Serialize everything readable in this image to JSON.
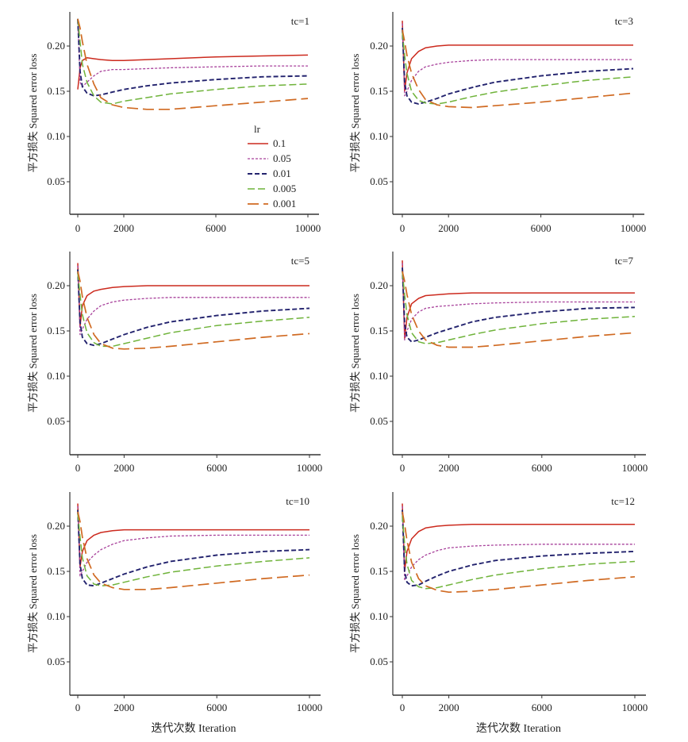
{
  "figure": {
    "xlabel": "迭代次数 Iteration",
    "ylabel": "平方损失 Squared error loss"
  },
  "legend": {
    "title": "lr",
    "entries": [
      "0.1",
      "0.05",
      "0.01",
      "0.005",
      "0.001"
    ]
  },
  "series_styles": [
    {
      "name": "0.1",
      "color": "#cc2a1e",
      "dash": "none",
      "width": 1.5
    },
    {
      "name": "0.05",
      "color": "#a8419b",
      "dash": "3,2",
      "width": 1.3
    },
    {
      "name": "0.01",
      "color": "#23236e",
      "dash": "6,3",
      "width": 1.9
    },
    {
      "name": "0.005",
      "color": "#6fb33a",
      "dash": "9,4",
      "width": 1.5
    },
    {
      "name": "0.001",
      "color": "#d06a22",
      "dash": "14,6",
      "width": 1.7
    }
  ],
  "chart_data": [
    {
      "type": "line",
      "title": "tc=1",
      "xlabel": "",
      "ylabel": "平方损失 Squared error loss",
      "xlim": [
        -500,
        10000
      ],
      "ylim": [
        0.02,
        0.23
      ],
      "xticks": [
        "0",
        "2000",
        "6000",
        "10000"
      ],
      "xtick_values": [
        0,
        2000,
        6000,
        10000
      ],
      "yticks": [
        "0.20",
        "0.15",
        "0.10",
        "0.05"
      ],
      "ytick_values": [
        0.2,
        0.15,
        0.1,
        0.05
      ],
      "show_legend": true,
      "legend_position": "center-right",
      "x": [
        0,
        100,
        200,
        400,
        700,
        1000,
        1500,
        2000,
        3000,
        4000,
        6000,
        8000,
        10000
      ],
      "series": [
        {
          "name": "0.1",
          "values": [
            0.152,
            0.176,
            0.184,
            0.187,
            0.186,
            0.185,
            0.184,
            0.184,
            0.185,
            0.186,
            0.188,
            0.189,
            0.19
          ]
        },
        {
          "name": "0.05",
          "values": [
            0.23,
            0.16,
            0.155,
            0.16,
            0.167,
            0.172,
            0.174,
            0.174,
            0.175,
            0.176,
            0.177,
            0.178,
            0.178
          ]
        },
        {
          "name": "0.01",
          "values": [
            0.23,
            0.172,
            0.155,
            0.148,
            0.145,
            0.146,
            0.149,
            0.152,
            0.156,
            0.159,
            0.163,
            0.166,
            0.167
          ]
        },
        {
          "name": "0.005",
          "values": [
            0.23,
            0.205,
            0.18,
            0.16,
            0.145,
            0.138,
            0.136,
            0.139,
            0.143,
            0.147,
            0.152,
            0.156,
            0.158
          ]
        },
        {
          "name": "0.001",
          "values": [
            0.23,
            0.22,
            0.205,
            0.18,
            0.158,
            0.143,
            0.135,
            0.132,
            0.13,
            0.13,
            0.134,
            0.138,
            0.142
          ]
        }
      ]
    },
    {
      "type": "line",
      "title": "tc=3",
      "xlabel": "",
      "ylabel": "平方损失 Squared error loss",
      "xlim": [
        -500,
        10000
      ],
      "ylim": [
        0.02,
        0.23
      ],
      "xticks": [
        "0",
        "2000",
        "6000",
        "10000"
      ],
      "xtick_values": [
        0,
        2000,
        6000,
        10000
      ],
      "yticks": [
        "0.20",
        "0.15",
        "0.10",
        "0.05"
      ],
      "ytick_values": [
        0.2,
        0.15,
        0.1,
        0.05
      ],
      "show_legend": false,
      "x": [
        0,
        100,
        200,
        400,
        700,
        1000,
        1500,
        2000,
        3000,
        4000,
        6000,
        8000,
        10000
      ],
      "series": [
        {
          "name": "0.1",
          "values": [
            0.228,
            0.15,
            0.17,
            0.186,
            0.194,
            0.198,
            0.2,
            0.201,
            0.201,
            0.201,
            0.201,
            0.201,
            0.201
          ]
        },
        {
          "name": "0.05",
          "values": [
            0.225,
            0.145,
            0.15,
            0.162,
            0.172,
            0.177,
            0.18,
            0.182,
            0.184,
            0.185,
            0.185,
            0.185,
            0.185
          ]
        },
        {
          "name": "0.01",
          "values": [
            0.22,
            0.16,
            0.145,
            0.138,
            0.136,
            0.138,
            0.142,
            0.147,
            0.154,
            0.16,
            0.167,
            0.172,
            0.175
          ]
        },
        {
          "name": "0.005",
          "values": [
            0.215,
            0.19,
            0.17,
            0.15,
            0.14,
            0.137,
            0.136,
            0.138,
            0.144,
            0.149,
            0.156,
            0.162,
            0.166
          ]
        },
        {
          "name": "0.001",
          "values": [
            0.218,
            0.205,
            0.19,
            0.17,
            0.152,
            0.141,
            0.135,
            0.133,
            0.132,
            0.134,
            0.138,
            0.143,
            0.148
          ]
        }
      ]
    },
    {
      "type": "line",
      "title": "tc=5",
      "xlabel": "",
      "ylabel": "平方损失 Squared error loss",
      "xlim": [
        -500,
        10000
      ],
      "ylim": [
        0.02,
        0.23
      ],
      "xticks": [
        "0",
        "2000",
        "6000",
        "10000"
      ],
      "xtick_values": [
        0,
        2000,
        6000,
        10000
      ],
      "yticks": [
        "0.20",
        "0.15",
        "0.10",
        "0.05"
      ],
      "ytick_values": [
        0.2,
        0.15,
        0.1,
        0.05
      ],
      "show_legend": false,
      "x": [
        0,
        100,
        200,
        400,
        700,
        1000,
        1500,
        2000,
        3000,
        4000,
        6000,
        8000,
        10000
      ],
      "series": [
        {
          "name": "0.1",
          "values": [
            0.225,
            0.155,
            0.178,
            0.189,
            0.194,
            0.196,
            0.198,
            0.199,
            0.2,
            0.2,
            0.2,
            0.2,
            0.2
          ]
        },
        {
          "name": "0.05",
          "values": [
            0.222,
            0.146,
            0.152,
            0.163,
            0.172,
            0.178,
            0.182,
            0.184,
            0.186,
            0.187,
            0.187,
            0.187,
            0.187
          ]
        },
        {
          "name": "0.01",
          "values": [
            0.218,
            0.16,
            0.143,
            0.136,
            0.134,
            0.136,
            0.141,
            0.146,
            0.154,
            0.16,
            0.167,
            0.172,
            0.175
          ]
        },
        {
          "name": "0.005",
          "values": [
            0.214,
            0.19,
            0.168,
            0.148,
            0.137,
            0.133,
            0.133,
            0.136,
            0.142,
            0.148,
            0.156,
            0.161,
            0.165
          ]
        },
        {
          "name": "0.001",
          "values": [
            0.216,
            0.205,
            0.188,
            0.165,
            0.146,
            0.136,
            0.131,
            0.13,
            0.131,
            0.133,
            0.138,
            0.143,
            0.147
          ]
        }
      ]
    },
    {
      "type": "line",
      "title": "tc=7",
      "xlabel": "",
      "ylabel": "平方损失 Squared error loss",
      "xlim": [
        -500,
        10000
      ],
      "ylim": [
        0.02,
        0.23
      ],
      "xticks": [
        "0",
        "2000",
        "6000",
        "10000"
      ],
      "xtick_values": [
        0,
        2000,
        6000,
        10000
      ],
      "yticks": [
        "0.20",
        "0.15",
        "0.10",
        "0.05"
      ],
      "ytick_values": [
        0.2,
        0.15,
        0.1,
        0.05
      ],
      "show_legend": false,
      "x": [
        0,
        100,
        200,
        400,
        700,
        1000,
        1500,
        2000,
        3000,
        4000,
        6000,
        8000,
        10000
      ],
      "series": [
        {
          "name": "0.1",
          "values": [
            0.228,
            0.142,
            0.165,
            0.18,
            0.186,
            0.189,
            0.19,
            0.191,
            0.192,
            0.192,
            0.192,
            0.192,
            0.192
          ]
        },
        {
          "name": "0.05",
          "values": [
            0.225,
            0.14,
            0.15,
            0.163,
            0.171,
            0.175,
            0.177,
            0.178,
            0.18,
            0.181,
            0.182,
            0.182,
            0.182
          ]
        },
        {
          "name": "0.01",
          "values": [
            0.22,
            0.158,
            0.143,
            0.138,
            0.14,
            0.143,
            0.148,
            0.152,
            0.16,
            0.165,
            0.171,
            0.175,
            0.176
          ]
        },
        {
          "name": "0.005",
          "values": [
            0.215,
            0.19,
            0.168,
            0.148,
            0.138,
            0.136,
            0.137,
            0.14,
            0.146,
            0.151,
            0.158,
            0.163,
            0.166
          ]
        },
        {
          "name": "0.001",
          "values": [
            0.216,
            0.205,
            0.19,
            0.168,
            0.15,
            0.14,
            0.134,
            0.132,
            0.132,
            0.134,
            0.139,
            0.144,
            0.148
          ]
        }
      ]
    },
    {
      "type": "line",
      "title": "tc=10",
      "xlabel": "迭代次数 Iteration",
      "ylabel": "平方损失 Squared error loss",
      "xlim": [
        -500,
        10000
      ],
      "ylim": [
        0.02,
        0.23
      ],
      "xticks": [
        "0",
        "2000",
        "6000",
        "10000"
      ],
      "xtick_values": [
        0,
        2000,
        6000,
        10000
      ],
      "yticks": [
        "0.20",
        "0.15",
        "0.10",
        "0.05"
      ],
      "ytick_values": [
        0.2,
        0.15,
        0.1,
        0.05
      ],
      "show_legend": false,
      "x": [
        0,
        100,
        200,
        400,
        700,
        1000,
        1500,
        2000,
        3000,
        4000,
        6000,
        8000,
        10000
      ],
      "series": [
        {
          "name": "0.1",
          "values": [
            0.225,
            0.155,
            0.172,
            0.184,
            0.19,
            0.193,
            0.195,
            0.196,
            0.196,
            0.196,
            0.196,
            0.196,
            0.196
          ]
        },
        {
          "name": "0.05",
          "values": [
            0.222,
            0.145,
            0.15,
            0.16,
            0.168,
            0.174,
            0.18,
            0.184,
            0.187,
            0.189,
            0.19,
            0.19,
            0.19
          ]
        },
        {
          "name": "0.01",
          "values": [
            0.218,
            0.158,
            0.142,
            0.135,
            0.134,
            0.137,
            0.142,
            0.147,
            0.155,
            0.161,
            0.168,
            0.172,
            0.174
          ]
        },
        {
          "name": "0.005",
          "values": [
            0.214,
            0.188,
            0.165,
            0.145,
            0.136,
            0.134,
            0.135,
            0.138,
            0.144,
            0.149,
            0.156,
            0.161,
            0.165
          ]
        },
        {
          "name": "0.001",
          "values": [
            0.216,
            0.205,
            0.188,
            0.164,
            0.146,
            0.137,
            0.132,
            0.13,
            0.13,
            0.132,
            0.137,
            0.142,
            0.146
          ]
        }
      ]
    },
    {
      "type": "line",
      "title": "tc=12",
      "xlabel": "迭代次数 Iteration",
      "ylabel": "平方损失 Squared error loss",
      "xlim": [
        -500,
        10000
      ],
      "ylim": [
        0.02,
        0.23
      ],
      "xticks": [
        "0",
        "2000",
        "6000",
        "10000"
      ],
      "xtick_values": [
        0,
        2000,
        6000,
        10000
      ],
      "yticks": [
        "0.20",
        "0.15",
        "0.10",
        "0.05"
      ],
      "ytick_values": [
        0.2,
        0.15,
        0.1,
        0.05
      ],
      "show_legend": false,
      "x": [
        0,
        100,
        200,
        400,
        700,
        1000,
        1500,
        2000,
        3000,
        4000,
        6000,
        8000,
        10000
      ],
      "series": [
        {
          "name": "0.1",
          "values": [
            0.225,
            0.15,
            0.172,
            0.186,
            0.194,
            0.198,
            0.2,
            0.201,
            0.202,
            0.202,
            0.202,
            0.202,
            0.202
          ]
        },
        {
          "name": "0.05",
          "values": [
            0.222,
            0.14,
            0.145,
            0.155,
            0.163,
            0.168,
            0.173,
            0.176,
            0.178,
            0.179,
            0.18,
            0.18,
            0.18
          ]
        },
        {
          "name": "0.01",
          "values": [
            0.218,
            0.15,
            0.138,
            0.134,
            0.135,
            0.139,
            0.145,
            0.15,
            0.157,
            0.162,
            0.167,
            0.17,
            0.172
          ]
        },
        {
          "name": "0.005",
          "values": [
            0.212,
            0.18,
            0.158,
            0.14,
            0.133,
            0.131,
            0.132,
            0.135,
            0.141,
            0.146,
            0.153,
            0.158,
            0.161
          ]
        },
        {
          "name": "0.001",
          "values": [
            0.216,
            0.202,
            0.184,
            0.16,
            0.142,
            0.134,
            0.129,
            0.127,
            0.128,
            0.13,
            0.135,
            0.14,
            0.144
          ]
        }
      ]
    }
  ]
}
